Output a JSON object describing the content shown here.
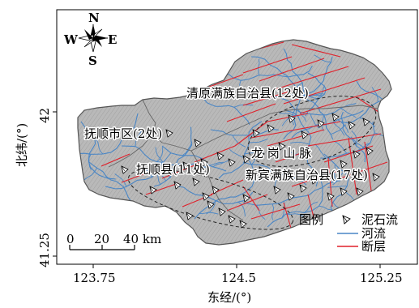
{
  "axes": {
    "x_title": "东经/(°)",
    "y_title": "北纬/(°)",
    "x_ticks": [
      "123.75",
      "124.5",
      "125.25"
    ],
    "y_ticks": [
      "42",
      "41.25"
    ]
  },
  "compass": {
    "north": "N",
    "south": "S",
    "west": "W",
    "east": "E"
  },
  "scale_bar": {
    "labels": [
      "0",
      "20",
      "40 km"
    ]
  },
  "places": {
    "qingyuan": "清原满族自治县(12处)",
    "fushun_city": "抚顺市区(2处)",
    "fushun_county": "抚顺县(11处)",
    "longgang": "龙 岗 山 脉",
    "xinbin": "新宾满族自治县(17处)"
  },
  "legend": {
    "title": "图例",
    "items": [
      {
        "label": "泥石流",
        "symbol": "debris-flow-triangle"
      },
      {
        "label": "河流",
        "color": "#4a86c5"
      },
      {
        "label": "断层",
        "color": "#e0202a"
      }
    ]
  },
  "colors": {
    "terrain": "#b9b9b9",
    "river": "#4a86c5",
    "fault": "#e0202a",
    "boundary": "#555555"
  }
}
